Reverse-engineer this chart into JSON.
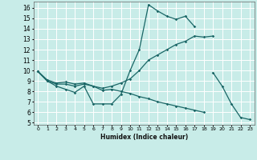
{
  "xlabel": "Humidex (Indice chaleur)",
  "bg_color": "#c8ece8",
  "grid_color": "#ffffff",
  "line_color": "#1a6666",
  "xlim": [
    -0.5,
    23.5
  ],
  "ylim": [
    4.8,
    16.6
  ],
  "xticks": [
    0,
    1,
    2,
    3,
    4,
    5,
    6,
    7,
    8,
    9,
    10,
    11,
    12,
    13,
    14,
    15,
    16,
    17,
    18,
    19,
    20,
    21,
    22,
    23
  ],
  "yticks": [
    5,
    6,
    7,
    8,
    9,
    10,
    11,
    12,
    13,
    14,
    15,
    16
  ],
  "line1_x": [
    0,
    1,
    2,
    3,
    4,
    5,
    6,
    7,
    8,
    9,
    10,
    11,
    12,
    13,
    14,
    15,
    16,
    17
  ],
  "line1_y": [
    9.9,
    9.0,
    8.5,
    8.2,
    7.9,
    8.5,
    6.8,
    6.8,
    6.8,
    7.7,
    10.0,
    12.0,
    16.3,
    15.7,
    15.2,
    14.9,
    15.2,
    14.2
  ],
  "line2_x": [
    0,
    1,
    2,
    3,
    4,
    5,
    6,
    7,
    8,
    9,
    10,
    11,
    12,
    13,
    14,
    15,
    16,
    17,
    18,
    19
  ],
  "line2_y": [
    9.9,
    9.0,
    8.7,
    8.7,
    8.5,
    8.7,
    8.5,
    8.3,
    8.5,
    8.8,
    9.2,
    10.0,
    11.0,
    11.5,
    12.0,
    12.5,
    12.8,
    13.3,
    13.2,
    13.3
  ],
  "line3_x": [
    0,
    1,
    2,
    3,
    4,
    5,
    6,
    7,
    8,
    9,
    10,
    11,
    12,
    13,
    14,
    15,
    16,
    17,
    18,
    19,
    20,
    21,
    22,
    23
  ],
  "line3_y": [
    9.9,
    9.1,
    8.8,
    8.9,
    8.7,
    8.8,
    8.5,
    8.1,
    8.2,
    8.0,
    7.8,
    7.5,
    7.3,
    7.0,
    6.8,
    6.6,
    6.4,
    6.2,
    6.0,
    9.8,
    8.5,
    6.8,
    5.5,
    5.3
  ]
}
